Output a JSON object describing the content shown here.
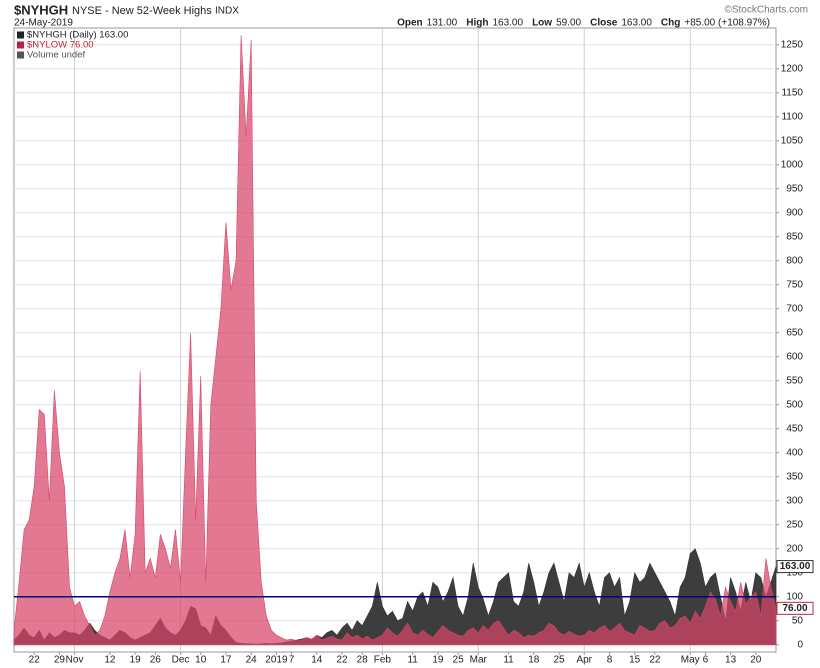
{
  "chart_data": {
    "type": "area",
    "symbol": "$NYHGH",
    "title": "NYSE - New 52-Week Highs",
    "exchange": "INDX",
    "date": "24-May-2019",
    "copyright": "©StockCharts.com",
    "quote": [
      {
        "label": "Open",
        "value": "131.00"
      },
      {
        "label": "High",
        "value": "163.00"
      },
      {
        "label": "Low",
        "value": "59.00"
      },
      {
        "label": "Close",
        "value": "163.00"
      },
      {
        "label": "Chg",
        "value": "+85.00 (+108.97%)"
      }
    ],
    "legend": [
      "$NYHGH (Daily) 163.00",
      "$NYLOW 76.00",
      "Volume undef"
    ],
    "legend_colors": [
      "#222222",
      "#c0203f",
      "#555555"
    ],
    "categories": [
      null,
      null,
      null,
      null,
      "22",
      null,
      null,
      null,
      null,
      "29",
      null,
      null,
      "Nov",
      null,
      null,
      null,
      null,
      null,
      null,
      "12",
      null,
      null,
      null,
      null,
      "19",
      null,
      null,
      null,
      "26",
      null,
      null,
      null,
      null,
      "Dec",
      null,
      null,
      null,
      "10",
      null,
      null,
      null,
      null,
      "17",
      null,
      null,
      null,
      null,
      "24",
      null,
      null,
      null,
      null,
      "2019",
      null,
      null,
      "7",
      null,
      null,
      null,
      null,
      "14",
      null,
      null,
      null,
      null,
      "22",
      null,
      null,
      null,
      "28",
      null,
      null,
      null,
      "Feb",
      null,
      null,
      null,
      null,
      null,
      "11",
      null,
      null,
      null,
      null,
      "19",
      null,
      null,
      null,
      "25",
      null,
      null,
      null,
      "Mar",
      null,
      null,
      null,
      null,
      null,
      "11",
      null,
      null,
      null,
      null,
      "18",
      null,
      null,
      null,
      null,
      "25",
      null,
      null,
      null,
      null,
      "Apr",
      null,
      null,
      null,
      null,
      "8",
      null,
      null,
      null,
      null,
      "15",
      null,
      null,
      null,
      "22",
      null,
      null,
      null,
      null,
      null,
      null,
      "May",
      null,
      null,
      "6",
      null,
      null,
      null,
      null,
      "13",
      null,
      null,
      null,
      null,
      "20",
      null,
      null,
      null,
      null
    ],
    "series": [
      {
        "name": "$NYHGH",
        "color": "#333333",
        "opacity": 0.95,
        "tag_label": "163.00",
        "tag_border": "#333333",
        "values": [
          10,
          20,
          35,
          20,
          15,
          30,
          10,
          25,
          15,
          20,
          30,
          25,
          25,
          20,
          30,
          45,
          30,
          20,
          15,
          10,
          20,
          30,
          25,
          15,
          10,
          15,
          20,
          25,
          40,
          55,
          35,
          25,
          20,
          30,
          50,
          80,
          75,
          40,
          35,
          20,
          60,
          40,
          30,
          15,
          5,
          3,
          2,
          2,
          1,
          2,
          3,
          2,
          3,
          4,
          6,
          8,
          10,
          12,
          15,
          10,
          20,
          15,
          25,
          30,
          20,
          35,
          45,
          30,
          50,
          40,
          60,
          80,
          130,
          80,
          60,
          70,
          50,
          55,
          90,
          70,
          100,
          110,
          80,
          130,
          120,
          90,
          110,
          140,
          80,
          60,
          100,
          170,
          120,
          95,
          60,
          90,
          130,
          140,
          150,
          90,
          80,
          110,
          170,
          130,
          80,
          110,
          150,
          170,
          130,
          90,
          150,
          140,
          170,
          120,
          150,
          110,
          80,
          140,
          150,
          120,
          140,
          60,
          90,
          150,
          130,
          140,
          170,
          150,
          130,
          110,
          90,
          60,
          120,
          140,
          190,
          200,
          170,
          120,
          140,
          150,
          100,
          50,
          140,
          110,
          70,
          130,
          90,
          150,
          140,
          100,
          131,
          163
        ]
      },
      {
        "name": "$NYLOW",
        "color": "#d8446a",
        "opacity": 0.72,
        "tag_label": "76.00",
        "tag_border": "#c0203f",
        "values": [
          30,
          130,
          240,
          260,
          330,
          490,
          480,
          300,
          530,
          400,
          330,
          120,
          80,
          90,
          60,
          40,
          20,
          30,
          60,
          110,
          150,
          180,
          240,
          140,
          230,
          570,
          150,
          180,
          140,
          230,
          200,
          160,
          240,
          130,
          400,
          650,
          260,
          560,
          130,
          500,
          600,
          700,
          880,
          740,
          800,
          1270,
          1060,
          1260,
          300,
          130,
          60,
          30,
          20,
          15,
          10,
          12,
          8,
          10,
          15,
          12,
          20,
          10,
          14,
          18,
          12,
          10,
          25,
          15,
          20,
          12,
          18,
          10,
          15,
          20,
          35,
          25,
          18,
          30,
          45,
          25,
          20,
          30,
          22,
          15,
          28,
          40,
          30,
          25,
          20,
          18,
          30,
          35,
          25,
          40,
          30,
          45,
          50,
          35,
          20,
          30,
          25,
          15,
          20,
          18,
          25,
          30,
          45,
          40,
          25,
          20,
          28,
          22,
          18,
          20,
          30,
          25,
          35,
          40,
          28,
          35,
          45,
          30,
          25,
          20,
          40,
          35,
          28,
          30,
          45,
          50,
          35,
          40,
          55,
          60,
          45,
          70,
          55,
          80,
          110,
          95,
          60,
          120,
          90,
          70,
          130,
          85,
          100,
          110,
          60,
          180,
          120,
          76
        ]
      }
    ],
    "reference_line": {
      "value": 100,
      "color": "#000080"
    },
    "ylim": [
      -15,
      1285
    ],
    "yticks": [
      0,
      50,
      100,
      150,
      200,
      250,
      300,
      350,
      400,
      450,
      500,
      550,
      600,
      650,
      700,
      750,
      800,
      850,
      900,
      950,
      1000,
      1050,
      1100,
      1150,
      1200,
      1250
    ],
    "grid": true
  }
}
